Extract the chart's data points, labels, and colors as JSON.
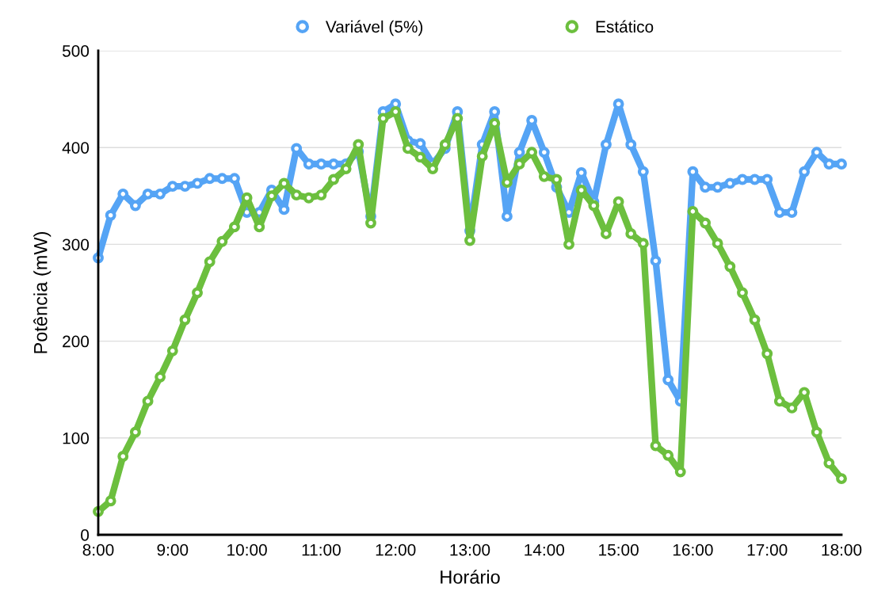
{
  "chart_data": {
    "type": "line",
    "xlabel": "Horário",
    "ylabel": "Potência (mW)",
    "x": [
      8,
      8.167,
      8.333,
      8.5,
      8.667,
      8.833,
      9,
      9.167,
      9.333,
      9.5,
      9.667,
      9.833,
      10,
      10.167,
      10.333,
      10.5,
      10.667,
      10.833,
      11,
      11.167,
      11.333,
      11.5,
      11.667,
      11.833,
      12,
      12.167,
      12.333,
      12.5,
      12.667,
      12.833,
      13,
      13.167,
      13.333,
      13.5,
      13.667,
      13.833,
      14,
      14.167,
      14.333,
      14.5,
      14.667,
      14.833,
      15,
      15.167,
      15.333,
      15.5,
      15.667,
      15.833,
      16,
      16.167,
      16.333,
      16.5,
      16.667,
      16.833,
      17,
      17.167,
      17.333,
      17.5,
      17.667,
      17.833,
      18
    ],
    "series": [
      {
        "name": "Variável (5%)",
        "color": "#55a4f5",
        "values": [
          286,
          330,
          352,
          340,
          352,
          352,
          360,
          360,
          363,
          368,
          368,
          368,
          333,
          333,
          356,
          336,
          399,
          383,
          383,
          383,
          383,
          396,
          329,
          437,
          445,
          407,
          404,
          383,
          399,
          437,
          314,
          403,
          437,
          329,
          395,
          428,
          395,
          359,
          333,
          374,
          344,
          403,
          445,
          403,
          375,
          283,
          160,
          138,
          375,
          359,
          359,
          363,
          367,
          367,
          367,
          333,
          333,
          375,
          395,
          383,
          383
        ]
      },
      {
        "name": "Estático",
        "color": "#6cbf3e",
        "values": [
          24,
          35,
          81,
          106,
          138,
          163,
          190,
          222,
          250,
          282,
          303,
          318,
          348,
          318,
          350,
          363,
          351,
          348,
          351,
          367,
          378,
          403,
          322,
          430,
          437,
          399,
          390,
          378,
          403,
          430,
          304,
          391,
          425,
          364,
          383,
          395,
          370,
          367,
          300,
          356,
          340,
          311,
          344,
          311,
          301,
          92,
          82,
          65,
          334,
          322,
          301,
          277,
          250,
          222,
          187,
          138,
          131,
          147,
          106,
          74,
          58
        ]
      }
    ],
    "xlim": [
      8,
      18
    ],
    "xticks": [
      {
        "value": 8,
        "label": "8:00"
      },
      {
        "value": 9,
        "label": "9:00"
      },
      {
        "value": 10,
        "label": "10:00"
      },
      {
        "value": 11,
        "label": "11:00"
      },
      {
        "value": 12,
        "label": "12:00"
      },
      {
        "value": 13,
        "label": "13:00"
      },
      {
        "value": 14,
        "label": "14:00"
      },
      {
        "value": 15,
        "label": "15:00"
      },
      {
        "value": 16,
        "label": "16:00"
      },
      {
        "value": 17,
        "label": "17:00"
      },
      {
        "value": 18,
        "label": "18:00"
      }
    ],
    "ylim": [
      0,
      500
    ],
    "yticks": [
      0,
      100,
      200,
      300,
      400,
      500
    ],
    "grid": "y",
    "legend": "top",
    "marker": "circle",
    "line_style": "solid"
  }
}
